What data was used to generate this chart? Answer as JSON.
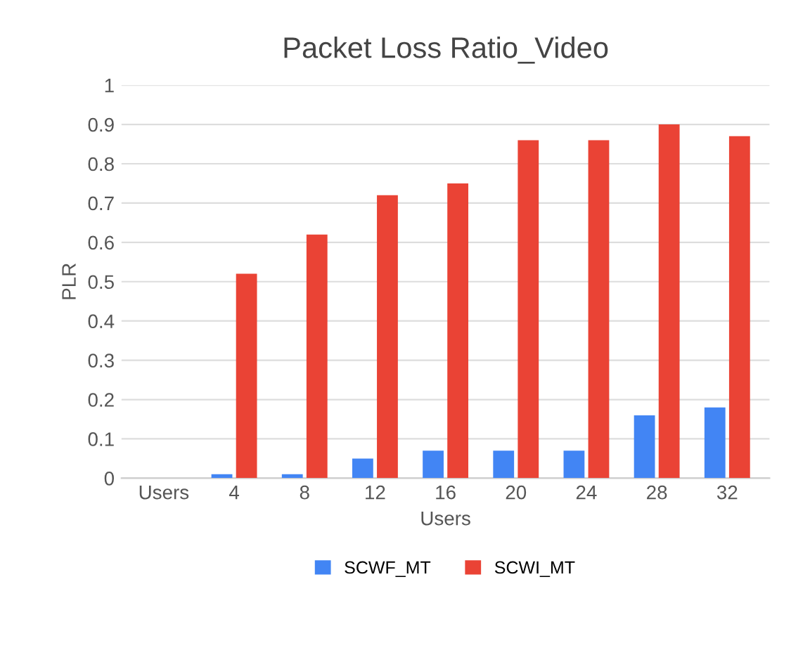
{
  "chart_data": {
    "type": "bar",
    "title": "Packet Loss Ratio_Video",
    "xlabel": "Users",
    "ylabel": "PLR",
    "categories": [
      "Users",
      "4",
      "8",
      "12",
      "16",
      "20",
      "24",
      "28",
      "32"
    ],
    "series": [
      {
        "name": "SCWF_MT",
        "color": "#4285f4",
        "values": [
          null,
          0.01,
          0.01,
          0.05,
          0.07,
          0.07,
          0.07,
          0.16,
          0.18
        ]
      },
      {
        "name": "SCWI_MT",
        "color": "#ea4335",
        "values": [
          null,
          0.52,
          0.62,
          0.72,
          0.75,
          0.86,
          0.86,
          0.9,
          0.87
        ]
      }
    ],
    "ylim": [
      0,
      1
    ],
    "yticks": [
      0,
      0.1,
      0.2,
      0.3,
      0.4,
      0.5,
      0.6,
      0.7,
      0.8,
      0.9,
      1
    ],
    "grid": "y",
    "legend": "bottom"
  }
}
